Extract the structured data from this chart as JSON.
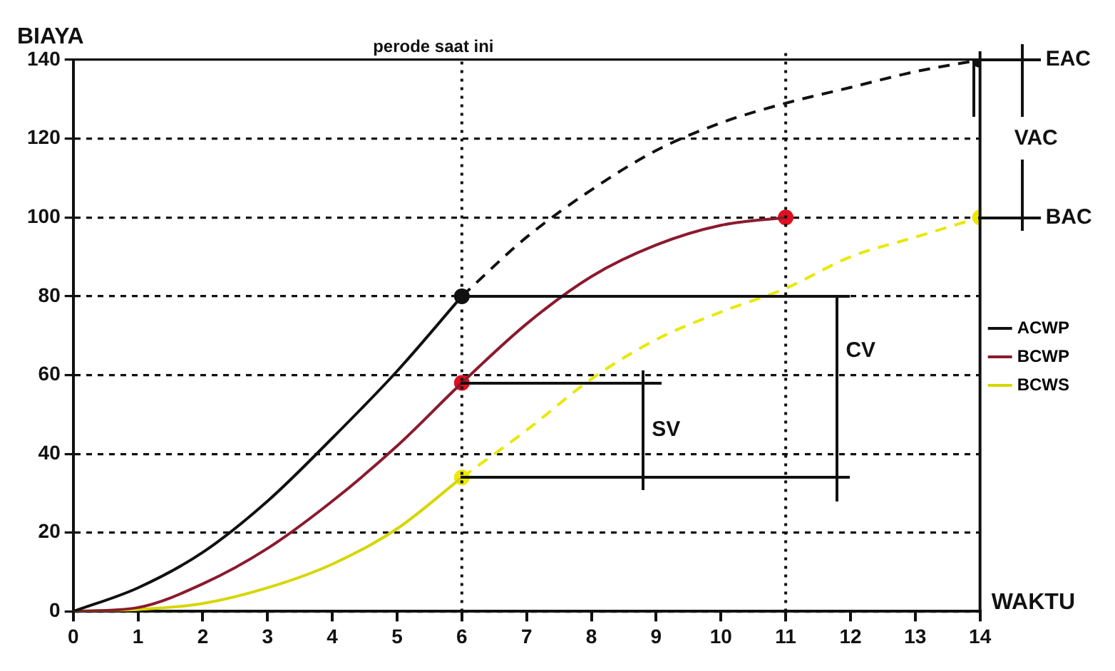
{
  "chart_data": {
    "type": "line",
    "ylabel": "BIAYA",
    "xlabel": "WAKTU",
    "xlim": [
      0,
      14
    ],
    "xticks": [
      0,
      1,
      2,
      3,
      4,
      5,
      6,
      7,
      8,
      9,
      10,
      11,
      12,
      13,
      14
    ],
    "ylim": [
      0,
      140
    ],
    "yticks": [
      0,
      20,
      40,
      60,
      80,
      100,
      120,
      140
    ],
    "grid": "y",
    "legend": "right",
    "series": [
      {
        "name": "ACWP",
        "color": "#111111",
        "x": [
          0,
          1,
          2,
          3,
          4,
          5,
          6
        ],
        "values": [
          0,
          6,
          15,
          28,
          44,
          61,
          80
        ]
      },
      {
        "name": "BCWP",
        "color": "#8b1a2e",
        "x": [
          0,
          1,
          2,
          3,
          4,
          5,
          6,
          7,
          8,
          9,
          10,
          11
        ],
        "values": [
          0,
          1,
          7,
          16,
          28,
          42,
          58,
          73,
          85,
          93,
          98,
          100
        ]
      },
      {
        "name": "BCWS",
        "color": "#d6d600",
        "x": [
          0,
          1,
          2,
          3,
          4,
          5,
          6
        ],
        "values": [
          0,
          0.5,
          2,
          6,
          12,
          21,
          34
        ]
      },
      {
        "color": "#111111",
        "line_style": "dashed",
        "x": [
          6,
          7,
          8,
          9,
          10,
          11,
          12,
          13,
          14
        ],
        "values": [
          80,
          95,
          107,
          117,
          124,
          129,
          133,
          137,
          140
        ]
      },
      {
        "color": "#e8e800",
        "line_style": "dashed",
        "x": [
          6,
          7,
          8,
          9,
          10,
          11,
          12,
          13,
          14
        ],
        "values": [
          34,
          46,
          59,
          69,
          76,
          82,
          90,
          95,
          100
        ]
      },
      {
        "type": "scatter",
        "marker": "circle",
        "color": "#111111",
        "x": [
          6,
          14
        ],
        "values": [
          80,
          140
        ]
      },
      {
        "type": "scatter",
        "marker": "circle",
        "color": "#e01020",
        "x": [
          6,
          11
        ],
        "values": [
          58,
          100
        ]
      },
      {
        "type": "scatter",
        "marker": "circle",
        "color": "#f0e800",
        "x": [
          6,
          14
        ],
        "values": [
          34,
          100
        ]
      }
    ],
    "ref_lines": [
      {
        "axis": "x",
        "value": 6,
        "label": "perode saat ini",
        "line_style": "dotted"
      },
      {
        "axis": "x",
        "value": 11,
        "line_style": "dotted"
      },
      {
        "axis": "x",
        "value": 14,
        "line_style": "solid"
      }
    ],
    "annotations": [
      "EAC",
      "VAC",
      "BAC",
      "SV",
      "CV"
    ]
  }
}
